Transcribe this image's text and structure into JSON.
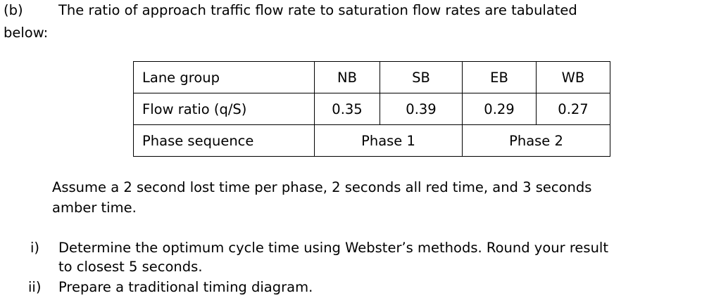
{
  "question": {
    "part_label": "(b)",
    "intro_line1": "The ratio of approach traffic flow rate to saturation flow rates are tabulated",
    "intro_line2": "below:"
  },
  "table": {
    "header": {
      "label": "Lane group",
      "cols": [
        "NB",
        "SB",
        "EB",
        "WB"
      ]
    },
    "flow_row": {
      "label": "Flow ratio (q/S)",
      "values": [
        "0.35",
        "0.39",
        "0.29",
        "0.27"
      ]
    },
    "phase_row": {
      "label": "Phase sequence",
      "phases": [
        "Phase 1",
        "Phase 2"
      ]
    }
  },
  "assumption": {
    "line1": "Assume a 2 second lost time per phase, 2 seconds all red time, and 3 seconds",
    "line2": "amber time."
  },
  "tasks": [
    {
      "marker": "i)",
      "line1": "Determine the optimum cycle time using Webster’s methods. Round your result",
      "line2": "to closest 5 seconds."
    },
    {
      "marker": "ii)",
      "line1": "Prepare a traditional timing diagram."
    }
  ]
}
